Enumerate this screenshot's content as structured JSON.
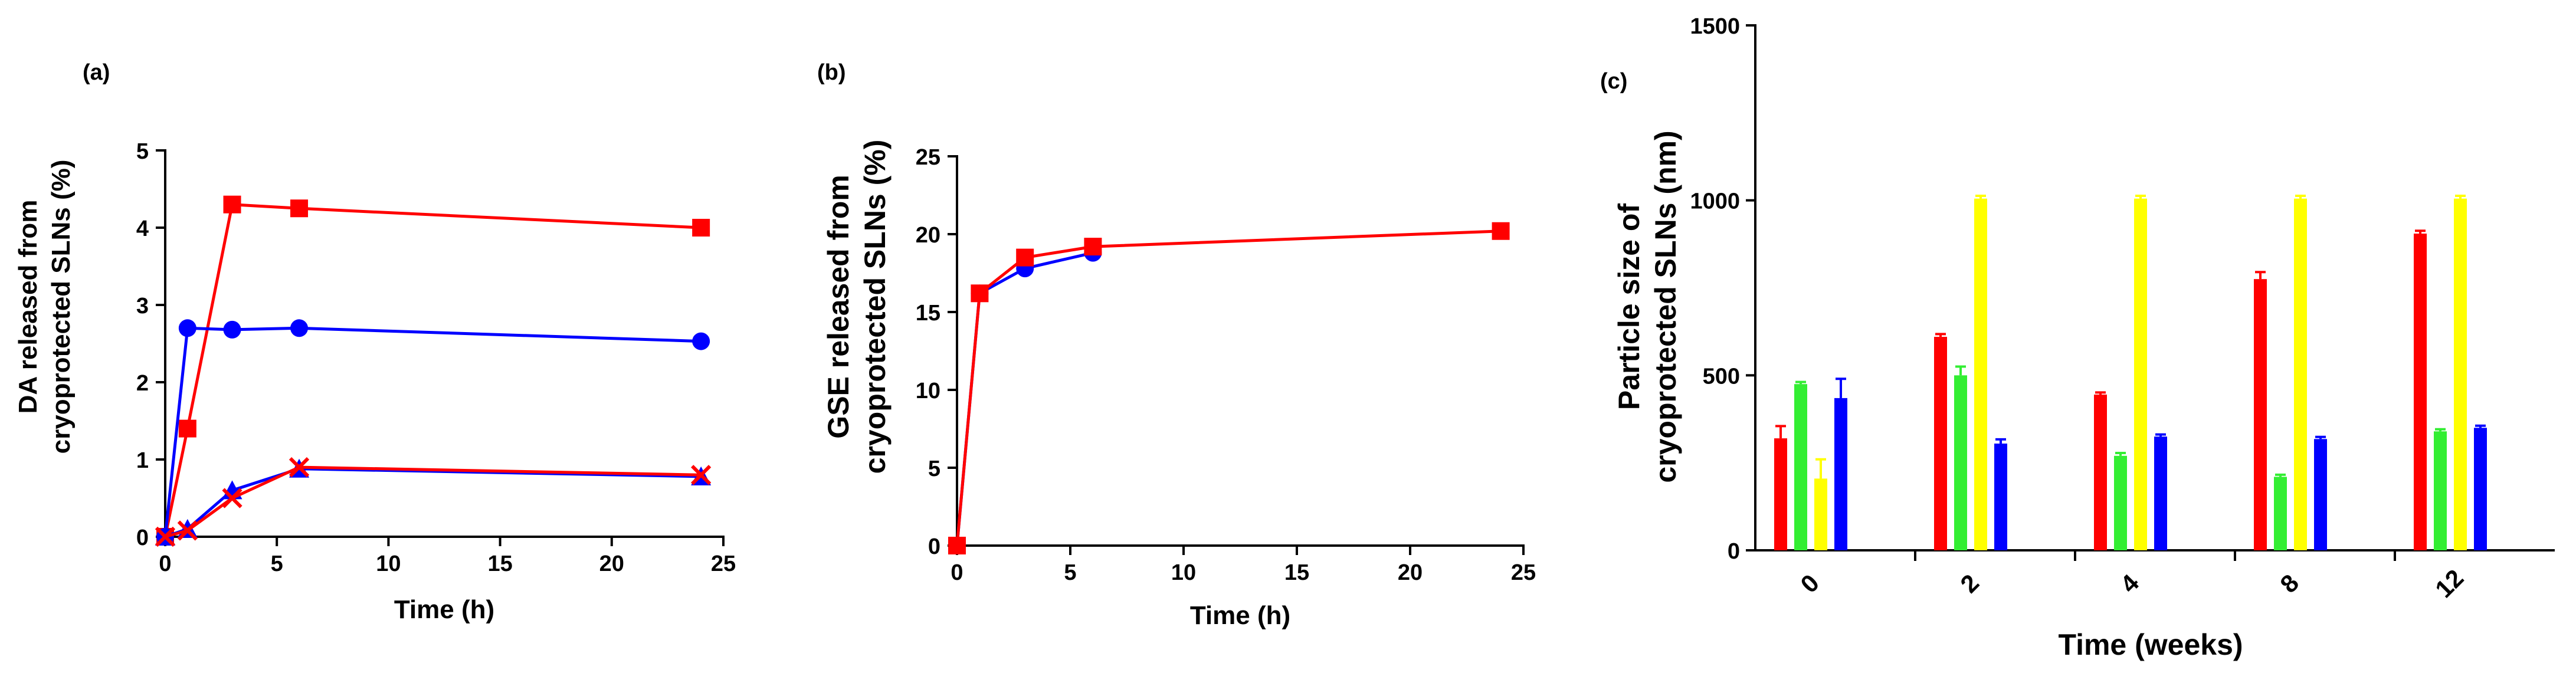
{
  "panels": [
    {
      "id": "a",
      "label": "(a)",
      "chart_data": {
        "type": "line",
        "xlabel": "Time (h)",
        "ylabel_lines": [
          "DA released from",
          "cryoprotected SLNs (%)"
        ],
        "xlim": [
          0,
          25
        ],
        "ylim": [
          0,
          5
        ],
        "xticks": [
          0,
          5,
          10,
          15,
          20,
          25
        ],
        "yticks": [
          0,
          1,
          2,
          3,
          4,
          5
        ],
        "series": [
          {
            "name": "red-squares",
            "color": "#ff0000",
            "marker": "square",
            "x": [
              0,
              1,
              3,
              6,
              24
            ],
            "y": [
              0,
              1.4,
              4.3,
              4.25,
              4.0
            ]
          },
          {
            "name": "blue-circles",
            "color": "#0000ff",
            "marker": "circle",
            "x": [
              0,
              1,
              3,
              6,
              24
            ],
            "y": [
              0,
              2.7,
              2.68,
              2.7,
              2.53
            ]
          },
          {
            "name": "blue-triangles",
            "color": "#0000ff",
            "marker": "triangle",
            "x": [
              0,
              1,
              3,
              6,
              24
            ],
            "y": [
              0,
              0.1,
              0.6,
              0.88,
              0.78
            ]
          },
          {
            "name": "red-crosses",
            "color": "#ff0000",
            "marker": "cross",
            "x": [
              0,
              1,
              3,
              6,
              24
            ],
            "y": [
              0,
              0.08,
              0.5,
              0.9,
              0.8
            ]
          }
        ]
      }
    },
    {
      "id": "b",
      "label": "(b)",
      "chart_data": {
        "type": "line",
        "xlabel": "Time (h)",
        "ylabel_lines": [
          "GSE released from",
          "cryoprotected SLNs (%)"
        ],
        "xlim": [
          0,
          25
        ],
        "ylim": [
          0,
          25
        ],
        "xticks": [
          0,
          5,
          10,
          15,
          20,
          25
        ],
        "yticks": [
          0,
          5,
          10,
          15,
          20,
          25
        ],
        "series": [
          {
            "name": "blue-circles",
            "color": "#0000ff",
            "marker": "circle",
            "x": [
              0,
              1,
              3,
              6
            ],
            "y": [
              0,
              16.2,
              17.8,
              18.8
            ]
          },
          {
            "name": "red-squares",
            "color": "#ff0000",
            "marker": "square",
            "x": [
              0,
              1,
              3,
              6,
              24
            ],
            "y": [
              0,
              16.2,
              18.5,
              19.2,
              20.2
            ]
          }
        ]
      }
    },
    {
      "id": "c",
      "label": "(c)",
      "chart_data": {
        "type": "bar",
        "xlabel": "Time (weeks)",
        "ylabel_lines": [
          "Particle size of",
          "cryoprotected SLNs (nm)"
        ],
        "ylim": [
          0,
          1500
        ],
        "yticks": [
          0,
          500,
          1000,
          1500
        ],
        "categories": [
          "0",
          "2",
          "4",
          "8",
          "12"
        ],
        "series": [
          {
            "name": "red",
            "color": "#ff0000",
            "values": [
              320,
              610,
              445,
              775,
              905
            ],
            "errors": [
              35,
              8,
              6,
              20,
              8
            ]
          },
          {
            "name": "green",
            "color": "#33ee33",
            "values": [
              475,
              500,
              270,
              210,
              340
            ],
            "errors": [
              6,
              25,
              8,
              6,
              6
            ]
          },
          {
            "name": "yellow",
            "color": "#ffff00",
            "values": [
              205,
              1005,
              1005,
              1005,
              1005
            ],
            "errors": [
              55,
              8,
              8,
              8,
              8
            ]
          },
          {
            "name": "blue",
            "color": "#0000ff",
            "values": [
              435,
              305,
              325,
              318,
              350
            ],
            "errors": [
              55,
              12,
              6,
              6,
              6
            ]
          }
        ]
      }
    }
  ]
}
